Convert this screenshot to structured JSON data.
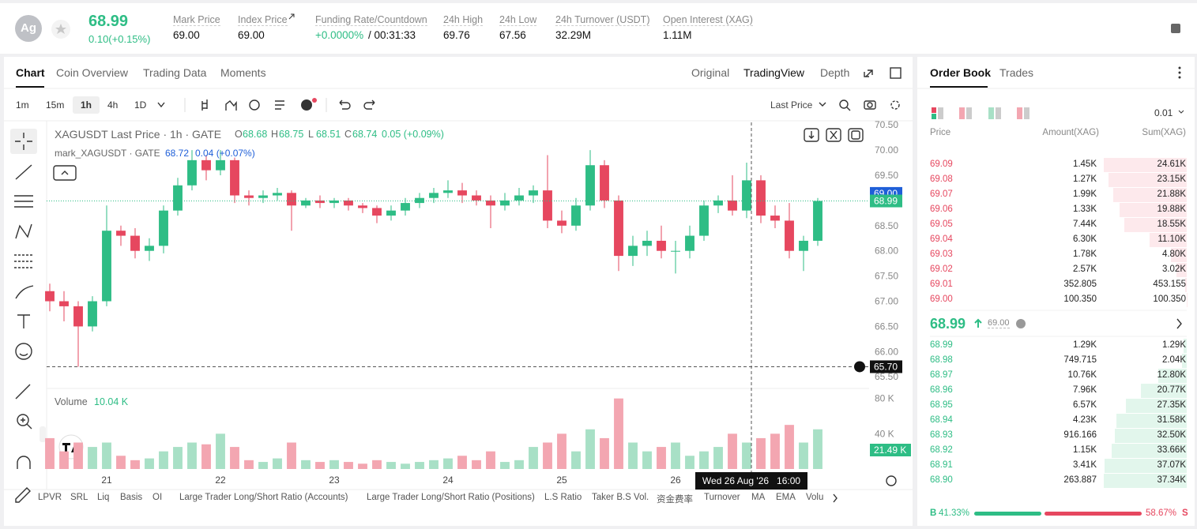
{
  "header": {
    "symbol_icon": "Ag",
    "price": "68.99",
    "change": "0.10(+0.15%)",
    "stats": [
      {
        "label": "Mark Price",
        "value": "69.00"
      },
      {
        "label": "Index Price",
        "value": "69.00"
      },
      {
        "label": "Funding Rate/Countdown",
        "value": "+0.0000%",
        "countdown": "/ 00:31:33"
      },
      {
        "label": "24h High",
        "value": "69.76"
      },
      {
        "label": "24h Low",
        "value": "67.56"
      },
      {
        "label": "24h Turnover (USDT)",
        "value": "32.29M"
      },
      {
        "label": "Open Interest (XAG)",
        "value": "1.11M"
      }
    ]
  },
  "chart_tabs": [
    "Chart",
    "Coin Overview",
    "Trading Data",
    "Moments"
  ],
  "chart_views": [
    "Original",
    "TradingView",
    "Depth"
  ],
  "intervals": [
    "1m",
    "15m",
    "1h",
    "4h",
    "1D"
  ],
  "price_type": "Last Price",
  "legend": {
    "title": "XAGUSDT Last Price · 1h · GATE",
    "o_label": "O",
    "o": "68.68",
    "h_label": "H",
    "h": "68.75",
    "l_label": "L",
    "l": "68.51",
    "c_label": "C",
    "c": "68.74",
    "change": "0.05 (+0.09%)",
    "mark_title": "mark_XAGUSDT · GATE",
    "mark_value": "68.72",
    "mark_change": "0.04 (+0.07%)",
    "volume_title": "Volume",
    "volume_value": "10.04 K"
  },
  "indicators": [
    "LPVR",
    "SRL",
    "Liq",
    "Basis",
    "OI",
    "Large Trader Long/Short Ratio (Accounts)",
    "Large Trader Long/Short Ratio (Positions)",
    "L.S Ratio",
    "Taker B.S Vol.",
    "资金费率",
    "Turnover",
    "MA",
    "EMA",
    "Volu"
  ],
  "chart_data": {
    "type": "candlestick",
    "up_color": "#2ebd85",
    "down_color": "#e6475f",
    "volume_up_color": "#a8e0c6",
    "volume_down_color": "#f3a6b1",
    "x": [
      -12,
      -9,
      -6,
      -3,
      0,
      3,
      6,
      9,
      12,
      15,
      18,
      21,
      24,
      27,
      30,
      33,
      36,
      39,
      42,
      45,
      48,
      51,
      54,
      57,
      60,
      63,
      66,
      69,
      72,
      75,
      78,
      81,
      84,
      87,
      90,
      93,
      96,
      99,
      102,
      105,
      108,
      111,
      114,
      117,
      120,
      123,
      126,
      129,
      132,
      135,
      138,
      141,
      144,
      147,
      150
    ],
    "open": [
      67.2,
      67.0,
      66.9,
      66.5,
      67.0,
      68.4,
      68.3,
      68.0,
      68.1,
      68.8,
      69.3,
      69.8,
      69.6,
      69.8,
      69.1,
      69.05,
      69.1,
      69.15,
      68.9,
      69.0,
      68.95,
      69.0,
      68.9,
      68.85,
      68.7,
      68.8,
      68.95,
      69.05,
      69.15,
      69.2,
      69.1,
      69.0,
      68.9,
      69.0,
      69.1,
      69.2,
      68.6,
      68.5,
      68.9,
      69.7,
      69.0,
      67.9,
      68.1,
      68.2,
      68.0,
      68.0,
      68.3,
      68.9,
      69.0,
      68.8,
      69.4,
      68.7,
      68.6,
      68.0,
      68.2
    ],
    "high": [
      67.35,
      67.2,
      67.0,
      67.1,
      68.9,
      68.5,
      68.45,
      68.25,
      68.9,
      69.45,
      70.0,
      69.9,
      70.0,
      69.85,
      69.2,
      69.2,
      69.25,
      69.2,
      69.05,
      69.1,
      69.05,
      69.05,
      68.95,
      68.9,
      68.9,
      69.05,
      69.15,
      69.25,
      69.4,
      69.35,
      69.2,
      69.1,
      69.15,
      69.25,
      69.3,
      69.9,
      68.8,
      69.05,
      70.0,
      69.8,
      69.1,
      68.3,
      68.4,
      68.5,
      68.2,
      68.5,
      69.0,
      69.1,
      69.5,
      69.75,
      69.5,
      68.9,
      68.95,
      68.3,
      69.05
    ],
    "low": [
      66.8,
      66.6,
      65.7,
      66.4,
      66.9,
      68.1,
      67.85,
      67.8,
      67.95,
      68.7,
      69.2,
      69.4,
      69.5,
      68.95,
      68.9,
      68.95,
      69.0,
      68.4,
      68.85,
      68.85,
      68.85,
      68.8,
      68.75,
      68.55,
      68.6,
      68.7,
      68.85,
      68.95,
      69.05,
      68.95,
      68.9,
      68.45,
      68.8,
      68.9,
      68.95,
      68.45,
      68.35,
      68.4,
      68.8,
      68.85,
      67.6,
      67.7,
      67.9,
      67.85,
      67.55,
      67.85,
      68.2,
      68.75,
      68.7,
      68.65,
      68.55,
      68.45,
      67.85,
      67.6,
      68.1
    ],
    "close": [
      67.0,
      66.9,
      66.5,
      67.0,
      68.4,
      68.3,
      68.0,
      68.1,
      68.8,
      69.3,
      69.8,
      69.6,
      69.8,
      69.1,
      69.05,
      69.1,
      69.15,
      68.9,
      69.0,
      68.95,
      69.0,
      68.9,
      68.85,
      68.7,
      68.8,
      68.95,
      69.05,
      69.15,
      69.2,
      69.1,
      69.0,
      68.9,
      69.0,
      69.1,
      69.2,
      68.6,
      68.5,
      68.9,
      69.7,
      69.0,
      67.9,
      68.1,
      68.2,
      68.0,
      68.0,
      68.3,
      68.9,
      69.0,
      68.8,
      69.4,
      68.7,
      68.6,
      68.0,
      68.2,
      68.99
    ],
    "volume": [
      35,
      20,
      30,
      25,
      30,
      15,
      10,
      12,
      20,
      25,
      30,
      28,
      40,
      25,
      10,
      8,
      12,
      30,
      10,
      8,
      10,
      8,
      6,
      10,
      8,
      6,
      8,
      10,
      12,
      15,
      10,
      20,
      8,
      10,
      25,
      30,
      40,
      20,
      45,
      35,
      80,
      30,
      20,
      25,
      30,
      15,
      20,
      25,
      40,
      30,
      35,
      40,
      50,
      30,
      45
    ],
    "xlim": [
      -14,
      161
    ],
    "xticks": [
      {
        "value": 0,
        "label": "21"
      },
      {
        "value": 24,
        "label": "22"
      },
      {
        "value": 48,
        "label": "23"
      },
      {
        "value": 72,
        "label": "24"
      },
      {
        "value": 96,
        "label": "25"
      },
      {
        "value": 120,
        "label": "26"
      }
    ],
    "ylim": [
      65.3,
      70.55
    ],
    "yticks": [
      {
        "value": 65.5,
        "label": "65.50"
      },
      {
        "value": 66,
        "label": "66.00"
      },
      {
        "value": 66.5,
        "label": "66.50"
      },
      {
        "value": 67,
        "label": "67.00"
      },
      {
        "value": 67.5,
        "label": "67.50"
      },
      {
        "value": 68,
        "label": "68.00"
      },
      {
        "value": 68.5,
        "label": "68.50"
      },
      {
        "value": 69,
        "label": "69.00"
      },
      {
        "value": 69.5,
        "label": "69.50"
      },
      {
        "value": 70,
        "label": "70.00"
      },
      {
        "value": 70.5,
        "label": "70.50"
      }
    ],
    "volume_ylim": [
      0,
      90
    ],
    "volume_yticks": [
      {
        "value": 40,
        "label": "40 K"
      },
      {
        "value": 80,
        "label": "80 K"
      }
    ],
    "grid": false,
    "price_markers": [
      {
        "value": 69,
        "label": "69.00",
        "color": "#1f5fd8"
      },
      {
        "value": 68.99,
        "label": "68.99",
        "color": "#2ebd85"
      },
      {
        "value": 65.7,
        "label": "65.70",
        "color": "#111111"
      }
    ],
    "volume_marker": {
      "value": 21.49,
      "label": "21.49 K",
      "color": "#2ebd85"
    },
    "crosshair_x": {
      "value": 136,
      "label": "Wed 26 Aug '26   16:00"
    }
  },
  "order_book": {
    "tabs": [
      "Order Book",
      "Trades"
    ],
    "precision": "0.01",
    "headers": [
      "Price",
      "Amount(XAG)",
      "Sum(XAG)"
    ],
    "asks": [
      {
        "price": "69.09",
        "amount": "1.45K",
        "sum": "24.61K"
      },
      {
        "price": "69.08",
        "amount": "1.27K",
        "sum": "23.15K"
      },
      {
        "price": "69.07",
        "amount": "1.99K",
        "sum": "21.88K"
      },
      {
        "price": "69.06",
        "amount": "1.33K",
        "sum": "19.88K"
      },
      {
        "price": "69.05",
        "amount": "7.44K",
        "sum": "18.55K"
      },
      {
        "price": "69.04",
        "amount": "6.30K",
        "sum": "11.10K"
      },
      {
        "price": "69.03",
        "amount": "1.78K",
        "sum": "4.80K"
      },
      {
        "price": "69.02",
        "amount": "2.57K",
        "sum": "3.02K"
      },
      {
        "price": "69.01",
        "amount": "352.805",
        "sum": "453.155"
      },
      {
        "price": "69.00",
        "amount": "100.350",
        "sum": "100.350"
      }
    ],
    "last_price": "68.99",
    "mark_price": "69.00",
    "bids": [
      {
        "price": "68.99",
        "amount": "1.29K",
        "sum": "1.29K"
      },
      {
        "price": "68.98",
        "amount": "749.715",
        "sum": "2.04K"
      },
      {
        "price": "68.97",
        "amount": "10.76K",
        "sum": "12.80K"
      },
      {
        "price": "68.96",
        "amount": "7.96K",
        "sum": "20.77K"
      },
      {
        "price": "68.95",
        "amount": "6.57K",
        "sum": "27.35K"
      },
      {
        "price": "68.94",
        "amount": "4.23K",
        "sum": "31.58K"
      },
      {
        "price": "68.93",
        "amount": "916.166",
        "sum": "32.50K"
      },
      {
        "price": "68.92",
        "amount": "1.15K",
        "sum": "33.66K"
      },
      {
        "price": "68.91",
        "amount": "3.41K",
        "sum": "37.07K"
      },
      {
        "price": "68.90",
        "amount": "263.887",
        "sum": "37.34K"
      }
    ],
    "buy_label": "B",
    "buy_ratio": "41.33%",
    "sell_ratio": "58.67%",
    "sell_label": "S"
  }
}
